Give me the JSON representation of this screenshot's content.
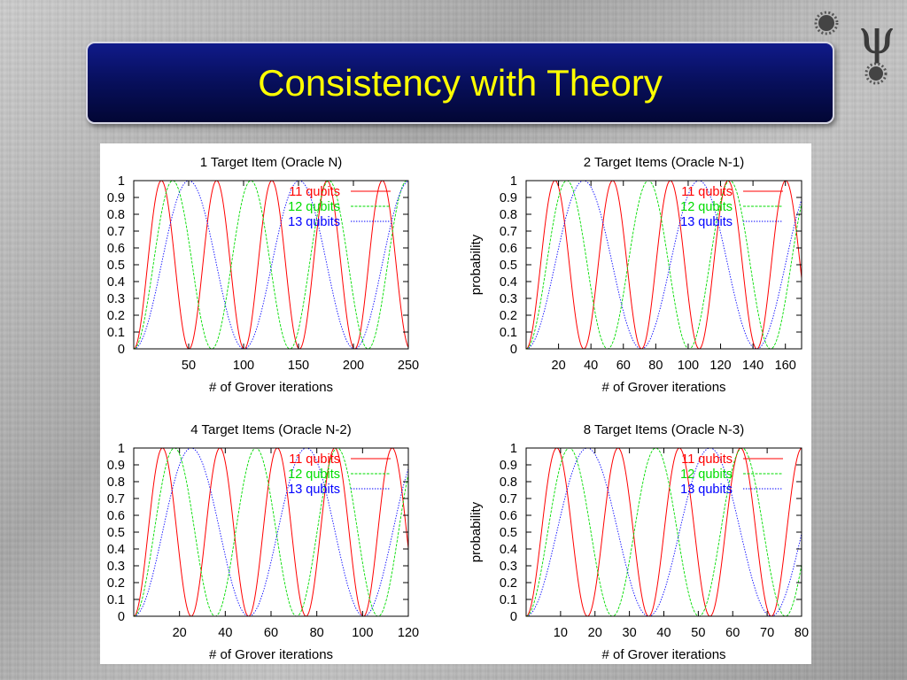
{
  "slide": {
    "title": "Consistency with Theory"
  },
  "logo": {
    "icon": "psi-logo-icon",
    "glyph": "ψ"
  },
  "colors": {
    "11 qubits": "#ff0000",
    "12 qubits": "#00dd00",
    "13 qubits": "#0000ff"
  },
  "chart_data": [
    {
      "type": "line",
      "title": "1 Target Item (Oracle N)",
      "xlabel": "# of Grover iterations",
      "ylabel": "",
      "xlim": [
        0,
        250
      ],
      "ylim": [
        0,
        1
      ],
      "xticks": [
        "50",
        "100",
        "150",
        "200",
        "250"
      ],
      "yticks": [
        "0",
        "0.1",
        "0.2",
        "0.3",
        "0.4",
        "0.5",
        "0.6",
        "0.7",
        "0.8",
        "0.9",
        "1"
      ],
      "legend_position": "top-right",
      "grid": false,
      "series": [
        {
          "name": "11 qubits",
          "period": 50.3,
          "line": "solid"
        },
        {
          "name": "12 qubits",
          "period": 71.1,
          "line": "dash"
        },
        {
          "name": "13 qubits",
          "period": 100.5,
          "line": "dot"
        }
      ]
    },
    {
      "type": "line",
      "title": "2 Target Items (Oracle N-1)",
      "xlabel": "# of Grover iterations",
      "ylabel": "probability",
      "xlim": [
        0,
        170
      ],
      "ylim": [
        0,
        1
      ],
      "xticks": [
        "20",
        "40",
        "60",
        "80",
        "100",
        "120",
        "140",
        "160"
      ],
      "yticks": [
        "0",
        "0.1",
        "0.2",
        "0.3",
        "0.4",
        "0.5",
        "0.6",
        "0.7",
        "0.8",
        "0.9",
        "1"
      ],
      "legend_position": "top-right",
      "grid": false,
      "series": [
        {
          "name": "11 qubits",
          "period": 35.6,
          "line": "solid"
        },
        {
          "name": "12 qubits",
          "period": 50.3,
          "line": "dash"
        },
        {
          "name": "13 qubits",
          "period": 71.1,
          "line": "dot"
        }
      ]
    },
    {
      "type": "line",
      "title": "4 Target Items (Oracle N-2)",
      "xlabel": "# of Grover iterations",
      "ylabel": "",
      "xlim": [
        0,
        120
      ],
      "ylim": [
        0,
        1
      ],
      "xticks": [
        "20",
        "40",
        "60",
        "80",
        "100",
        "120"
      ],
      "yticks": [
        "0",
        "0.1",
        "0.2",
        "0.3",
        "0.4",
        "0.5",
        "0.6",
        "0.7",
        "0.8",
        "0.9",
        "1"
      ],
      "legend_position": "top-right",
      "grid": false,
      "series": [
        {
          "name": "11 qubits",
          "period": 25.1,
          "line": "solid"
        },
        {
          "name": "12 qubits",
          "period": 35.6,
          "line": "dash"
        },
        {
          "name": "13 qubits",
          "period": 50.3,
          "line": "dot"
        }
      ]
    },
    {
      "type": "line",
      "title": "8 Target Items (Oracle N-3)",
      "xlabel": "# of Grover iterations",
      "ylabel": "probability",
      "xlim": [
        0,
        80
      ],
      "ylim": [
        0,
        1
      ],
      "xticks": [
        "10",
        "20",
        "30",
        "40",
        "50",
        "60",
        "70",
        "80"
      ],
      "yticks": [
        "0",
        "0.1",
        "0.2",
        "0.3",
        "0.4",
        "0.5",
        "0.6",
        "0.7",
        "0.8",
        "0.9",
        "1"
      ],
      "legend_position": "top-right",
      "grid": false,
      "series": [
        {
          "name": "11 qubits",
          "period": 17.8,
          "line": "solid"
        },
        {
          "name": "12 qubits",
          "period": 25.1,
          "line": "dash"
        },
        {
          "name": "13 qubits",
          "period": 35.6,
          "line": "dot"
        }
      ]
    }
  ]
}
